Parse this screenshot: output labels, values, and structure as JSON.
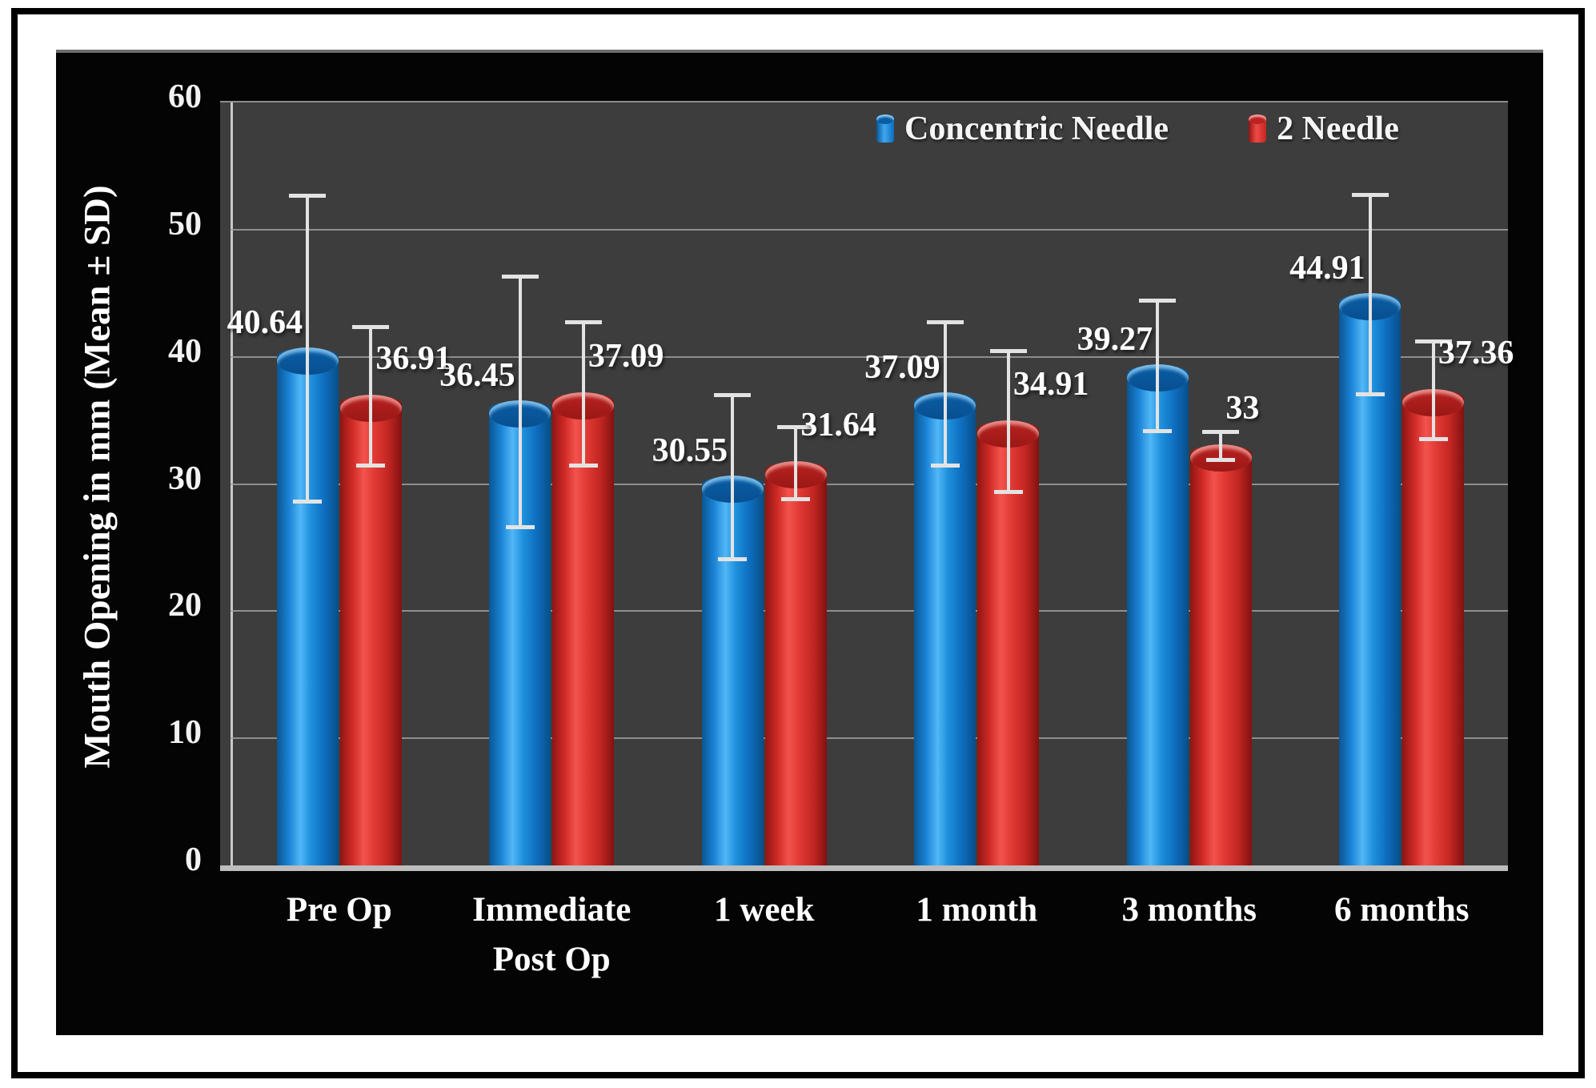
{
  "chart_data": {
    "type": "bar",
    "title": "",
    "ylabel": "Mouth Opening in mm (Mean ± SD)",
    "xlabel": "",
    "categories": [
      "Pre Op",
      "Immediate\nPost Op",
      "1 week",
      "1 month",
      "3 months",
      "6 months"
    ],
    "series": [
      {
        "name": "Concentric Needle",
        "color": "#1581d8",
        "values": [
          40.64,
          36.45,
          30.55,
          37.09,
          39.27,
          44.91
        ],
        "sd": [
          12.2,
          10.0,
          6.6,
          5.8,
          5.3,
          8.0
        ]
      },
      {
        "name": "2 Needle",
        "color": "#e0322e",
        "values": [
          36.91,
          37.09,
          31.64,
          34.91,
          33,
          37.36
        ],
        "sd": [
          5.6,
          5.8,
          3.0,
          5.7,
          1.25,
          4.0
        ]
      }
    ],
    "value_labels": [
      [
        "40.64",
        "36.45",
        "30.55",
        "37.09",
        "39.27",
        "44.91"
      ],
      [
        "36.91",
        "37.09",
        "31.64",
        "34.91",
        "33",
        "37.36"
      ]
    ],
    "yticks": [
      0,
      10,
      20,
      30,
      40,
      50,
      60
    ],
    "ylim": [
      0,
      60
    ],
    "grid": true,
    "legend_position": "top-right",
    "error_bars": "plus-minus SD, white caps",
    "colors": {
      "plot_background": "#3d3d3d",
      "panel_background": "#040404",
      "gridline": "#a2a2a2",
      "error_bar": "#e3e3e3",
      "text": "#ffffff"
    }
  }
}
